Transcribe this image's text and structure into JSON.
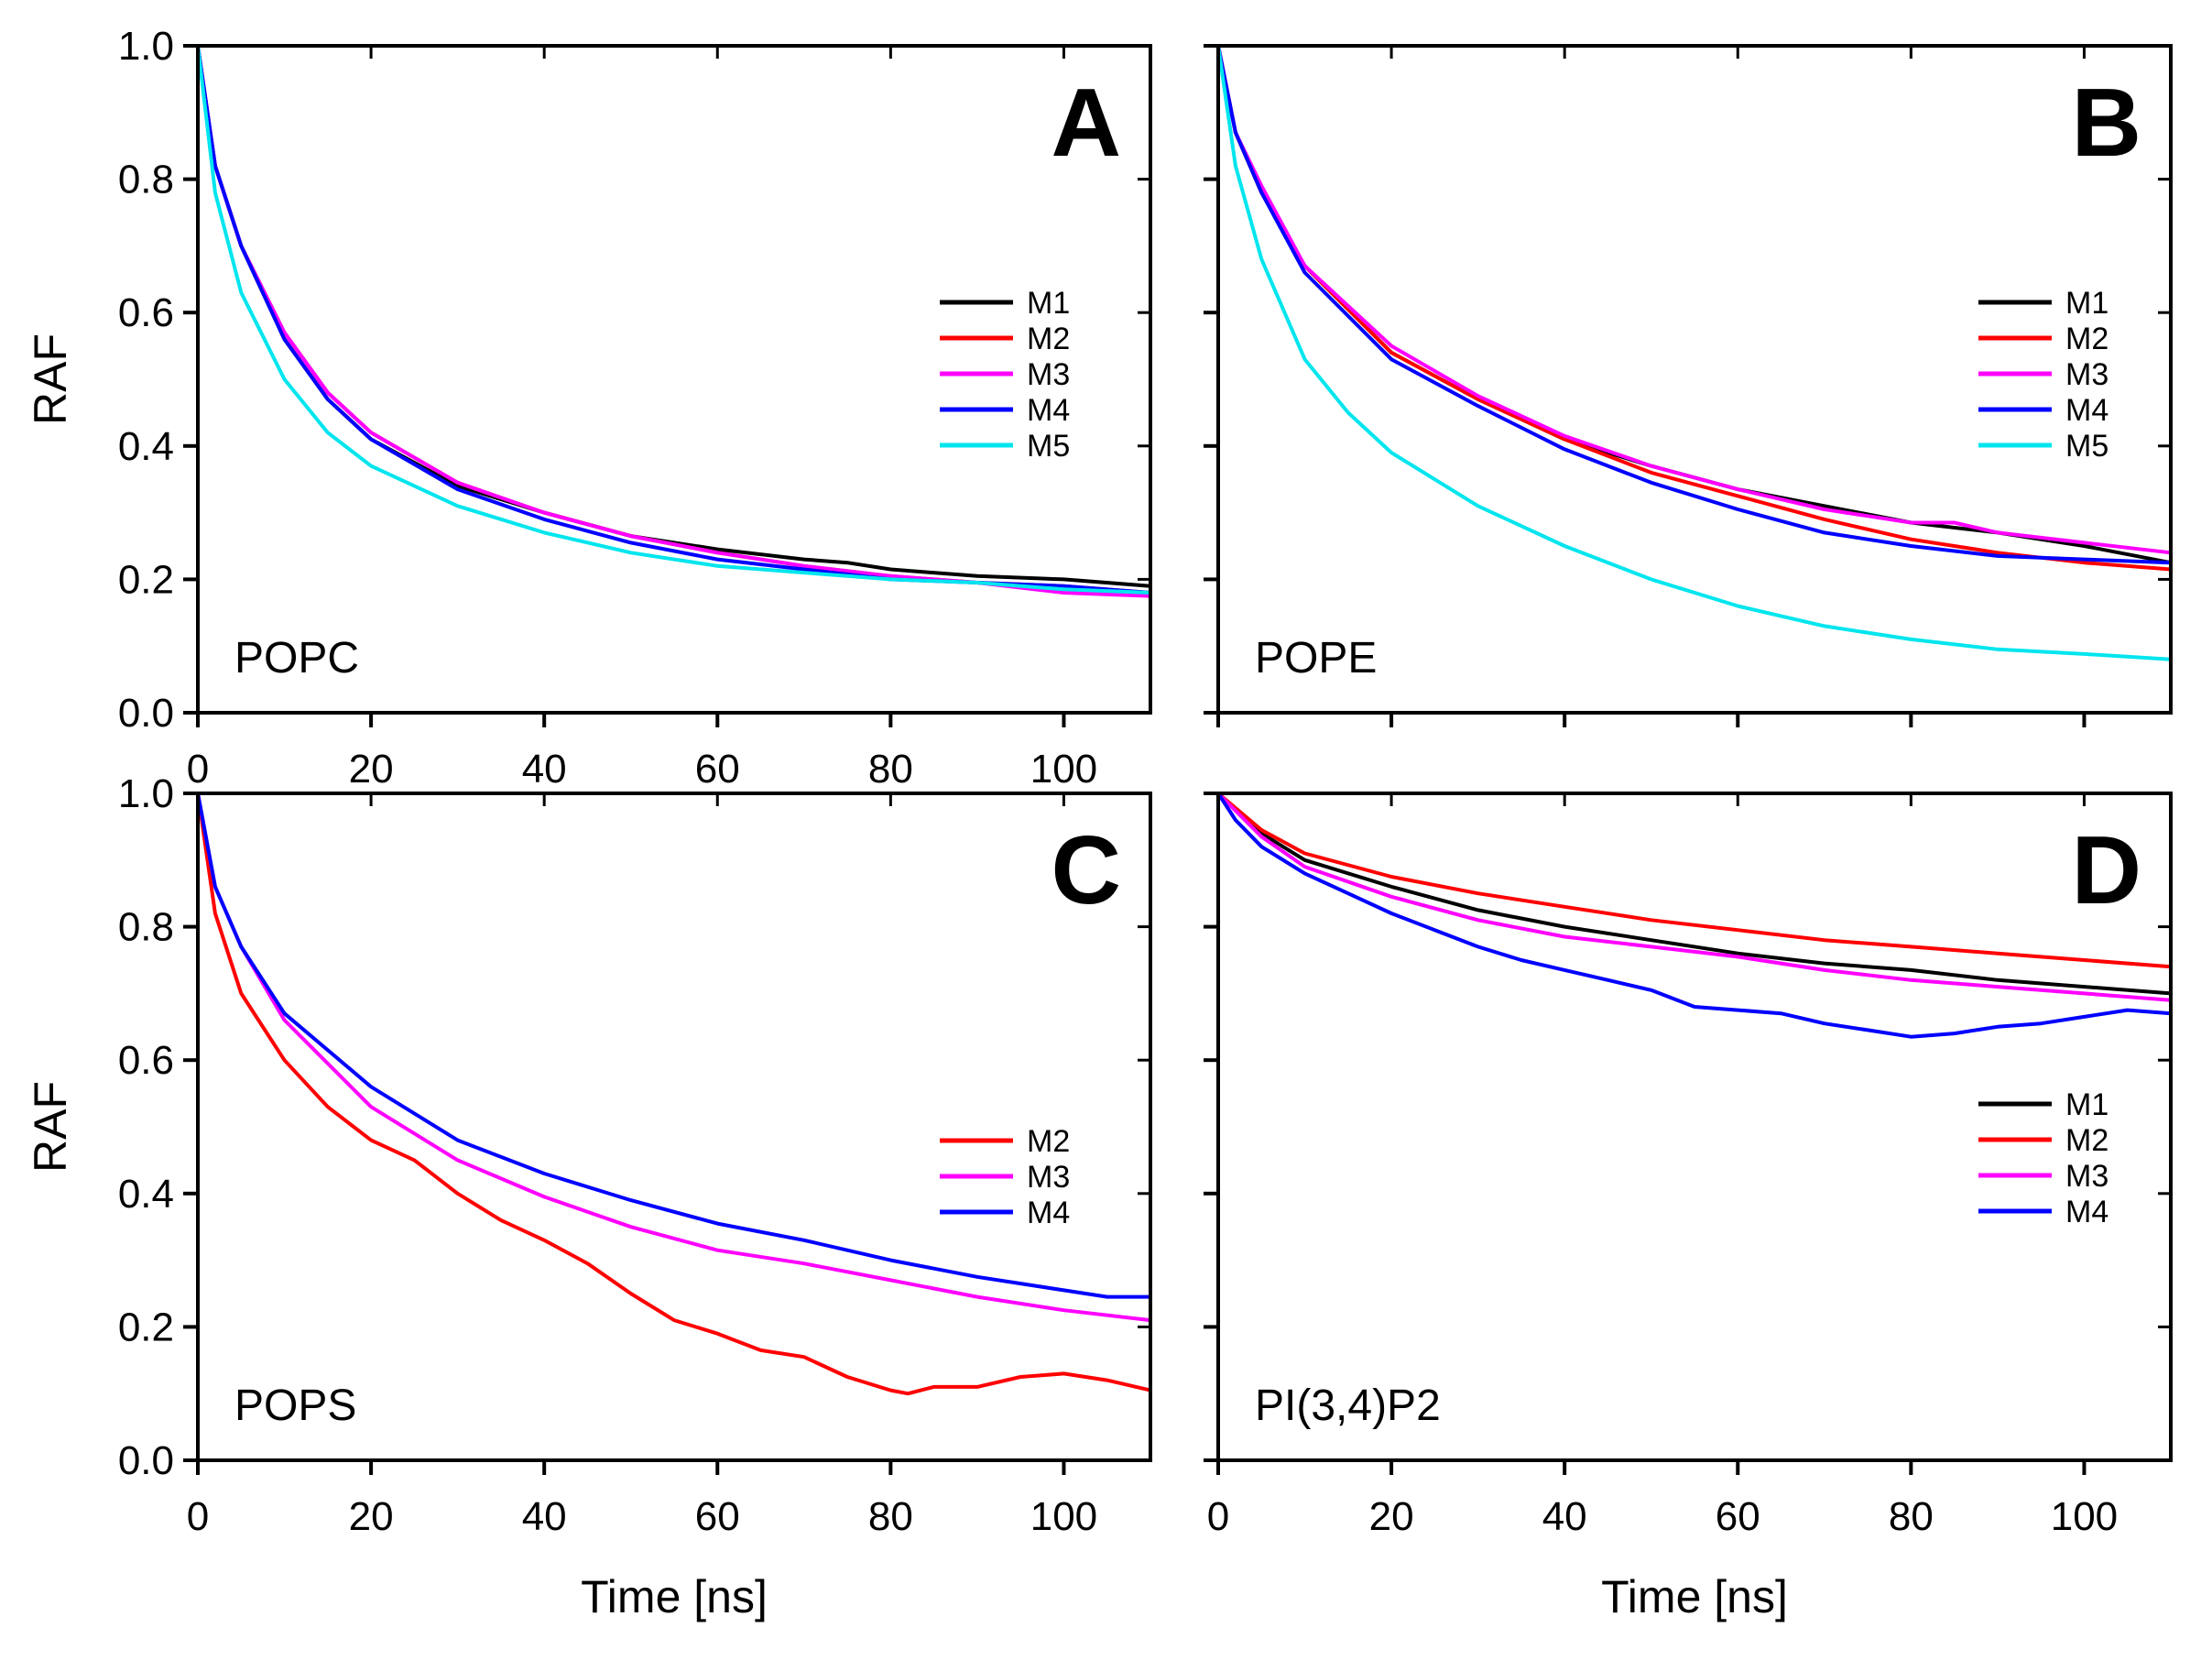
{
  "chart_data": [
    {
      "id": "A",
      "type": "line",
      "panel_letter": "A",
      "lipid": "POPC",
      "ylabel": "RAF",
      "xlabel": "",
      "xlim": [
        0,
        110
      ],
      "ylim": [
        0,
        1.0
      ],
      "xticks": [
        "0",
        "20",
        "40",
        "60",
        "80",
        "100"
      ],
      "yticks": [
        "0.0",
        "0.2",
        "0.4",
        "0.6",
        "0.8",
        "1.0"
      ],
      "legend_position": "right",
      "series": [
        {
          "name": "M1",
          "color": "#000000",
          "x": [
            0,
            2,
            5,
            10,
            15,
            20,
            30,
            40,
            50,
            60,
            70,
            75,
            80,
            90,
            100,
            110
          ],
          "values": [
            1.0,
            0.82,
            0.7,
            0.56,
            0.47,
            0.41,
            0.34,
            0.3,
            0.265,
            0.245,
            0.23,
            0.225,
            0.215,
            0.205,
            0.2,
            0.19
          ]
        },
        {
          "name": "M2",
          "color": "#ff0000",
          "x": [
            0,
            2,
            5,
            10,
            15,
            20,
            30,
            40,
            50,
            60,
            70,
            80,
            90,
            100,
            110
          ],
          "values": [
            1.0,
            0.82,
            0.7,
            0.57,
            0.48,
            0.42,
            0.345,
            0.3,
            0.265,
            0.24,
            0.22,
            0.205,
            0.195,
            0.19,
            0.18
          ]
        },
        {
          "name": "M3",
          "color": "#ff00ff",
          "x": [
            0,
            2,
            5,
            10,
            15,
            20,
            30,
            40,
            50,
            60,
            70,
            80,
            90,
            100,
            110
          ],
          "values": [
            1.0,
            0.82,
            0.7,
            0.57,
            0.48,
            0.42,
            0.345,
            0.3,
            0.265,
            0.24,
            0.22,
            0.205,
            0.195,
            0.18,
            0.175
          ]
        },
        {
          "name": "M4",
          "color": "#0000ff",
          "x": [
            0,
            2,
            5,
            10,
            15,
            20,
            30,
            40,
            50,
            60,
            70,
            80,
            90,
            100,
            110
          ],
          "values": [
            1.0,
            0.82,
            0.7,
            0.56,
            0.47,
            0.41,
            0.335,
            0.29,
            0.255,
            0.23,
            0.215,
            0.2,
            0.195,
            0.19,
            0.18
          ]
        },
        {
          "name": "M5",
          "color": "#00e5ee",
          "x": [
            0,
            2,
            5,
            10,
            15,
            20,
            30,
            40,
            50,
            60,
            70,
            80,
            90,
            100,
            110
          ],
          "values": [
            1.0,
            0.78,
            0.63,
            0.5,
            0.42,
            0.37,
            0.31,
            0.27,
            0.24,
            0.22,
            0.21,
            0.2,
            0.195,
            0.185,
            0.18
          ]
        }
      ]
    },
    {
      "id": "B",
      "type": "line",
      "panel_letter": "B",
      "lipid": "POPE",
      "ylabel": "",
      "xlabel": "",
      "xlim": [
        0,
        110
      ],
      "ylim": [
        0,
        1.0
      ],
      "xticks": [
        "",
        "",
        "",
        "",
        "",
        ""
      ],
      "yticks": [
        "",
        "",
        "",
        "",
        "",
        ""
      ],
      "legend_position": "right",
      "series": [
        {
          "name": "M1",
          "color": "#000000",
          "x": [
            0,
            2,
            5,
            10,
            20,
            30,
            40,
            50,
            60,
            70,
            80,
            90,
            100,
            110
          ],
          "values": [
            1.0,
            0.87,
            0.78,
            0.67,
            0.54,
            0.47,
            0.41,
            0.37,
            0.335,
            0.31,
            0.285,
            0.27,
            0.25,
            0.225
          ]
        },
        {
          "name": "M2",
          "color": "#ff0000",
          "x": [
            0,
            2,
            5,
            10,
            20,
            30,
            40,
            50,
            60,
            70,
            80,
            90,
            100,
            110
          ],
          "values": [
            1.0,
            0.87,
            0.78,
            0.67,
            0.54,
            0.47,
            0.41,
            0.36,
            0.325,
            0.29,
            0.26,
            0.24,
            0.225,
            0.215
          ]
        },
        {
          "name": "M3",
          "color": "#ff00ff",
          "x": [
            0,
            2,
            5,
            10,
            20,
            30,
            40,
            50,
            60,
            70,
            80,
            85,
            90,
            100,
            110
          ],
          "values": [
            1.0,
            0.87,
            0.79,
            0.67,
            0.55,
            0.475,
            0.415,
            0.37,
            0.335,
            0.305,
            0.285,
            0.285,
            0.27,
            0.255,
            0.24
          ]
        },
        {
          "name": "M4",
          "color": "#0000ff",
          "x": [
            0,
            2,
            5,
            10,
            20,
            30,
            40,
            50,
            60,
            70,
            80,
            90,
            100,
            110
          ],
          "values": [
            1.0,
            0.87,
            0.78,
            0.66,
            0.53,
            0.46,
            0.395,
            0.345,
            0.305,
            0.27,
            0.25,
            0.235,
            0.23,
            0.225
          ]
        },
        {
          "name": "M5",
          "color": "#00e5ee",
          "x": [
            0,
            2,
            5,
            10,
            15,
            20,
            30,
            40,
            50,
            60,
            70,
            80,
            90,
            100,
            110
          ],
          "values": [
            1.0,
            0.82,
            0.68,
            0.53,
            0.45,
            0.39,
            0.31,
            0.25,
            0.2,
            0.16,
            0.13,
            0.11,
            0.095,
            0.088,
            0.08
          ]
        }
      ]
    },
    {
      "id": "C",
      "type": "line",
      "panel_letter": "C",
      "lipid": "POPS",
      "ylabel": "RAF",
      "xlabel": "Time [ns]",
      "xlim": [
        0,
        110
      ],
      "ylim": [
        0,
        1.0
      ],
      "xticks": [
        "0",
        "20",
        "40",
        "60",
        "80",
        "100"
      ],
      "yticks": [
        "0.0",
        "0.2",
        "0.4",
        "0.6",
        "0.8",
        "1.0"
      ],
      "legend_position": "right",
      "series": [
        {
          "name": "M2",
          "color": "#ff0000",
          "x": [
            0,
            2,
            5,
            10,
            15,
            20,
            25,
            30,
            35,
            40,
            45,
            50,
            55,
            60,
            65,
            70,
            75,
            80,
            82,
            85,
            90,
            95,
            100,
            105,
            110
          ],
          "values": [
            1.0,
            0.82,
            0.7,
            0.6,
            0.53,
            0.48,
            0.45,
            0.4,
            0.36,
            0.33,
            0.295,
            0.25,
            0.21,
            0.19,
            0.165,
            0.155,
            0.125,
            0.105,
            0.1,
            0.11,
            0.11,
            0.125,
            0.13,
            0.12,
            0.105
          ]
        },
        {
          "name": "M3",
          "color": "#ff00ff",
          "x": [
            0,
            2,
            5,
            10,
            20,
            30,
            40,
            50,
            60,
            70,
            80,
            90,
            100,
            110
          ],
          "values": [
            1.0,
            0.86,
            0.77,
            0.66,
            0.53,
            0.45,
            0.395,
            0.35,
            0.315,
            0.295,
            0.27,
            0.245,
            0.225,
            0.21
          ]
        },
        {
          "name": "M4",
          "color": "#0000ff",
          "x": [
            0,
            2,
            5,
            10,
            20,
            30,
            40,
            50,
            60,
            70,
            80,
            90,
            100,
            105,
            110
          ],
          "values": [
            1.0,
            0.86,
            0.77,
            0.67,
            0.56,
            0.48,
            0.43,
            0.39,
            0.355,
            0.33,
            0.3,
            0.275,
            0.255,
            0.245,
            0.245
          ]
        }
      ]
    },
    {
      "id": "D",
      "type": "line",
      "panel_letter": "D",
      "lipid": "PI(3,4)P2",
      "ylabel": "",
      "xlabel": "Time [ns]",
      "xlim": [
        0,
        110
      ],
      "ylim": [
        0,
        1.0
      ],
      "xticks": [
        "0",
        "20",
        "40",
        "60",
        "80",
        "100"
      ],
      "yticks": [
        "",
        "",
        "",
        "",
        "",
        ""
      ],
      "legend_position": "right",
      "series": [
        {
          "name": "M1",
          "color": "#000000",
          "x": [
            0,
            5,
            10,
            20,
            30,
            40,
            50,
            60,
            70,
            80,
            90,
            100,
            110
          ],
          "values": [
            1.0,
            0.94,
            0.9,
            0.86,
            0.825,
            0.8,
            0.78,
            0.76,
            0.745,
            0.735,
            0.72,
            0.71,
            0.7
          ]
        },
        {
          "name": "M2",
          "color": "#ff0000",
          "x": [
            0,
            5,
            10,
            20,
            30,
            40,
            50,
            60,
            70,
            80,
            90,
            100,
            110
          ],
          "values": [
            1.0,
            0.945,
            0.91,
            0.875,
            0.85,
            0.83,
            0.81,
            0.795,
            0.78,
            0.77,
            0.76,
            0.75,
            0.74
          ]
        },
        {
          "name": "M3",
          "color": "#ff00ff",
          "x": [
            0,
            5,
            10,
            20,
            30,
            40,
            50,
            60,
            70,
            80,
            90,
            100,
            110
          ],
          "values": [
            1.0,
            0.935,
            0.89,
            0.845,
            0.81,
            0.785,
            0.77,
            0.755,
            0.735,
            0.72,
            0.71,
            0.7,
            0.69
          ]
        },
        {
          "name": "M4",
          "color": "#0000ff",
          "x": [
            0,
            2,
            5,
            10,
            15,
            20,
            25,
            30,
            35,
            40,
            45,
            50,
            55,
            60,
            65,
            70,
            75,
            80,
            85,
            90,
            95,
            100,
            105,
            110
          ],
          "values": [
            1.0,
            0.96,
            0.92,
            0.88,
            0.85,
            0.82,
            0.795,
            0.77,
            0.75,
            0.735,
            0.72,
            0.705,
            0.68,
            0.675,
            0.67,
            0.655,
            0.645,
            0.635,
            0.64,
            0.65,
            0.655,
            0.665,
            0.675,
            0.67
          ]
        }
      ]
    }
  ]
}
